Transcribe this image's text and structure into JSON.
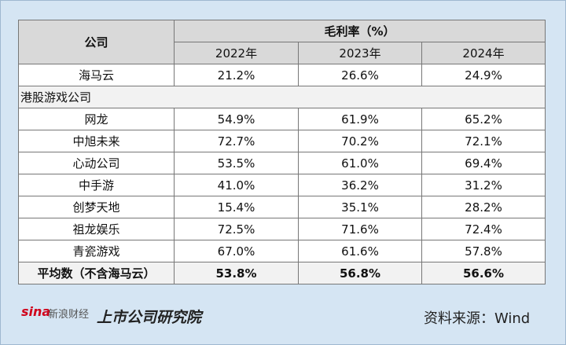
{
  "table": {
    "header": {
      "company": "公司",
      "group": "毛利率（%）",
      "years": [
        "2022年",
        "2023年",
        "2024年"
      ]
    },
    "top_rows": [
      [
        "海马云",
        "21.2%",
        "26.6%",
        "24.9%"
      ]
    ],
    "section": "港股游戏公司",
    "rows": [
      [
        "网龙",
        "54.9%",
        "61.9%",
        "65.2%"
      ],
      [
        "中旭未来",
        "72.7%",
        "70.2%",
        "72.1%"
      ],
      [
        "心动公司",
        "53.5%",
        "61.0%",
        "69.4%"
      ],
      [
        "中手游",
        "41.0%",
        "36.2%",
        "31.2%"
      ],
      [
        "创梦天地",
        "15.4%",
        "35.1%",
        "28.2%"
      ],
      [
        "祖龙娱乐",
        "72.5%",
        "71.6%",
        "72.4%"
      ],
      [
        "青瓷游戏",
        "67.0%",
        "61.6%",
        "57.8%"
      ]
    ],
    "average": [
      "平均数（不含海马云）",
      "53.8%",
      "56.8%",
      "56.6%"
    ]
  },
  "footer": {
    "logo_sina": "sina",
    "logo_sina_cn": "新浪财经",
    "logo_institute": "上市公司研究院",
    "source": "资料来源：Wind"
  }
}
